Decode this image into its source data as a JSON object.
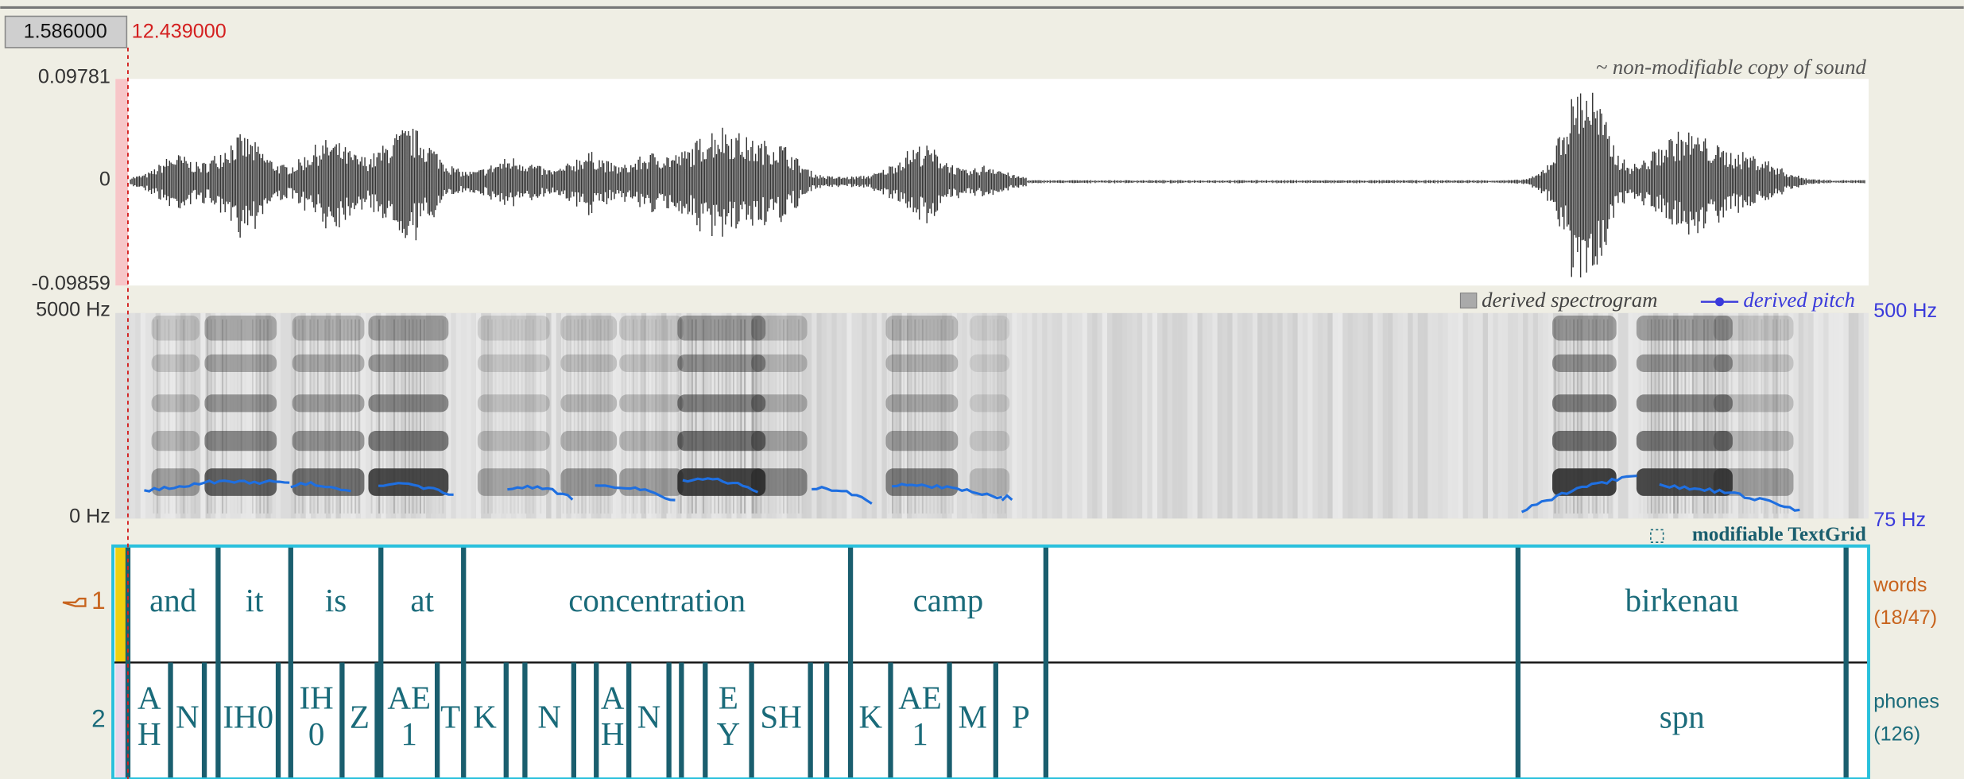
{
  "selection": {
    "start": "1.586000",
    "cursor": "12.439000"
  },
  "waveform": {
    "label": "~ non-modifiable copy of sound",
    "ymax": "0.09781",
    "zero": "0",
    "ymin": "-0.09859"
  },
  "spectrogram": {
    "fmax": "5000 Hz",
    "fmin": "0 Hz",
    "spectrogram_label": "derived spectrogram",
    "pitch_label": "derived pitch",
    "pmax": "500 Hz",
    "pmin": "75 Hz"
  },
  "textgrid": {
    "label": "modifiable TextGrid",
    "tiers": [
      {
        "number": "1",
        "name": "words",
        "count": "(18/47)",
        "intervals": [
          "and",
          "it",
          "is",
          "at",
          "concentration",
          "camp",
          "birkenau"
        ]
      },
      {
        "number": "2",
        "name": "phones",
        "count": "(126)",
        "intervals": [
          "AH",
          "N",
          "IH0",
          "IH0",
          "Z",
          "AE1",
          "T",
          "K",
          "N",
          "AH",
          "N",
          "EY",
          "SH",
          "K",
          "AE1",
          "M",
          "P",
          "spn"
        ]
      }
    ]
  }
}
